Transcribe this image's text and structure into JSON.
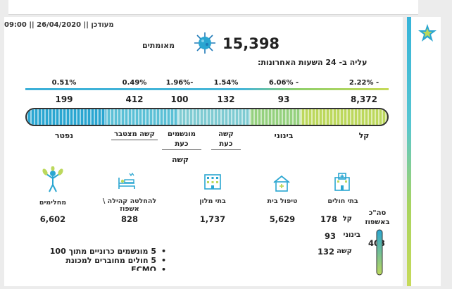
{
  "header": {
    "text": "מעודכן || 26/04/2020 || 09:00"
  },
  "confirmed": {
    "value": "15,398",
    "label": "מאומתים"
  },
  "rise_title": "עליה ב- 24 השעות האחרונות:",
  "categories": [
    {
      "pct": "- 2.22%",
      "count": "8,372",
      "label": "קל"
    },
    {
      "pct": "- 6.06%",
      "count": "93",
      "label": "בינוני"
    },
    {
      "pct": "1.54%",
      "count": "132",
      "label": "קשה כעת"
    },
    {
      "pct": "-1.96%",
      "count": "100",
      "label": "מונשמים כעת"
    },
    {
      "pct": "0.49%",
      "count": "412",
      "label": "קשה מצטבר"
    },
    {
      "pct": "0.51%",
      "count": "199",
      "label": "נפטר"
    }
  ],
  "severe_group_label": "קשה",
  "facilities": [
    {
      "label": "בתי חולים",
      "icon": "hospital-icon"
    },
    {
      "label": "טיפול בית",
      "value": "5,629",
      "icon": "home-icon"
    },
    {
      "label": "בתי מלון",
      "value": "1,737",
      "icon": "hotel-icon"
    },
    {
      "label": "להחלטה קהילה \\ אשפוז",
      "value": "828",
      "icon": "hospital-bed-icon"
    },
    {
      "label": "מחלימים",
      "value": "6,602",
      "icon": "recovered-person-icon"
    }
  ],
  "hospital_breakdown": {
    "total_label": "סה\"כ באשפוז",
    "total_value": "403",
    "rows": [
      {
        "label": "קל",
        "value": "178"
      },
      {
        "label": "בינוני",
        "value": "93"
      },
      {
        "label": "קשה",
        "value": "132"
      }
    ]
  },
  "notes": [
    "5 מונשמים כרוניים מתוך 100",
    "5 חולים מחוברים למכונת",
    "ECMO"
  ],
  "colors": {
    "accent_blue": "#2aa6d1",
    "accent_green": "#bcd85c"
  }
}
